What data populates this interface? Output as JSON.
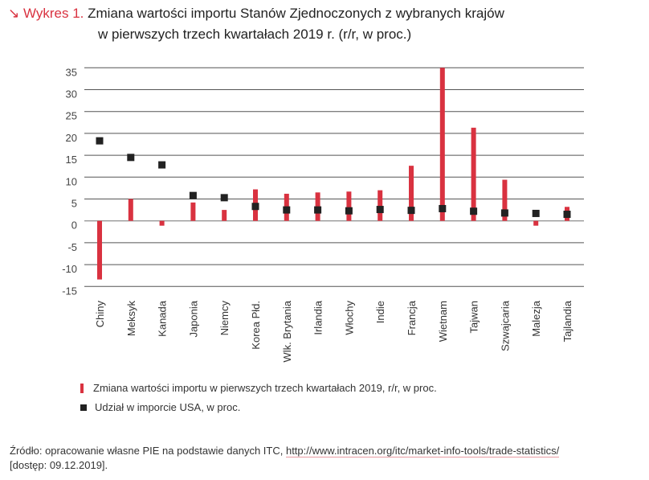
{
  "title": {
    "prefix_icon": "arrow-down-right-icon",
    "prefix": "Wykres 1.",
    "line1": "Zmiana wartości importu Stanów Zjednoczonych z wybranych krajów",
    "line2": "w pierwszych trzech kwartałach 2019 r. (r/r, w proc.)"
  },
  "colors": {
    "bar": "#d93240",
    "marker": "#222222",
    "grid": "#555555"
  },
  "chart_data": {
    "type": "bar",
    "title": "Zmiana wartości importu Stanów Zjednoczonych z wybranych krajów w pierwszych trzech kwartałach 2019 r. (r/r, w proc.)",
    "xlabel": "",
    "ylabel": "",
    "ylim": [
      -15,
      35
    ],
    "yticks": [
      "35",
      "30",
      "25",
      "20",
      "15",
      "10",
      "5",
      "0",
      "-5",
      "-10",
      "-15"
    ],
    "ytick_values": [
      35,
      30,
      25,
      20,
      15,
      10,
      5,
      0,
      -5,
      -10,
      -15
    ],
    "grid": true,
    "legend_placement": "bottom-left",
    "categories": [
      "Chiny",
      "Meksyk",
      "Kanada",
      "Japonia",
      "Niemcy",
      "Korea Płd.",
      "Wlk. Brytania",
      "Irlandia",
      "Włochy",
      "Indie",
      "Francja",
      "Wietnam",
      "Tajwan",
      "Szwajcaria",
      "Malezja",
      "Tajlandia"
    ],
    "series": [
      {
        "name": "Zmiana wartości importu w pierwszych trzech kwartałach 2019, r/r, w proc.",
        "type": "bar",
        "values": [
          -13.4,
          5.0,
          -1.1,
          4.2,
          2.5,
          7.2,
          6.2,
          6.5,
          6.7,
          7.0,
          12.6,
          35.0,
          21.3,
          9.4,
          -1.1,
          3.2
        ]
      },
      {
        "name": "Udział w imporcie USA, w proc.",
        "type": "scatter",
        "values": [
          18.3,
          14.5,
          12.8,
          5.8,
          5.3,
          3.3,
          2.5,
          2.5,
          2.3,
          2.6,
          2.4,
          2.8,
          2.2,
          1.8,
          1.7,
          1.5
        ]
      }
    ]
  },
  "source": {
    "text": "Źródło: opracowanie własne PIE na podstawie danych ITC, ",
    "link": "http://www.intracen.org/itc/market-info-tools/trade-statistics/",
    "access": "[dostęp: 09.12.2019]."
  }
}
